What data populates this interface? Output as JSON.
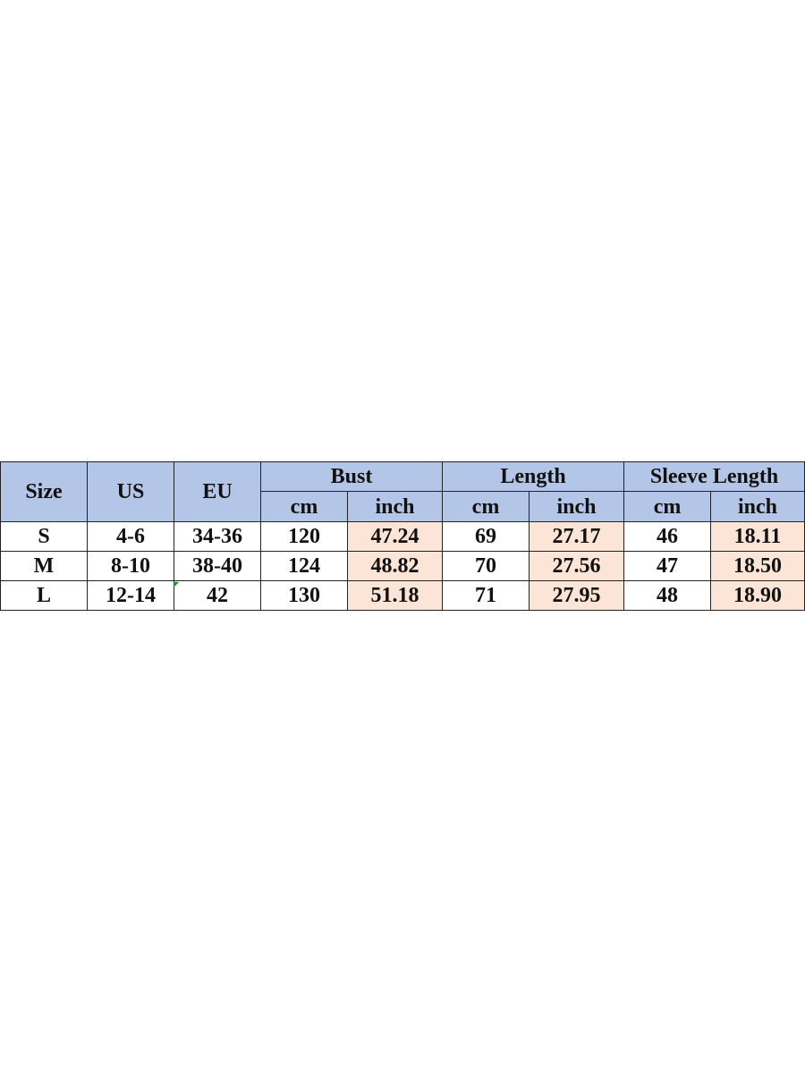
{
  "table": {
    "headers": {
      "size": "Size",
      "us": "US",
      "eu": "EU",
      "bust": "Bust",
      "length": "Length",
      "sleeve": "Sleeve Length",
      "cm": "cm",
      "inch": "inch"
    },
    "rows": [
      {
        "size": "S",
        "us": "4-6",
        "eu": "34-36",
        "bust_cm": "120",
        "bust_in": "47.24",
        "len_cm": "69",
        "len_in": "27.17",
        "sl_cm": "46",
        "sl_in": "18.11"
      },
      {
        "size": "M",
        "us": "8-10",
        "eu": "38-40",
        "bust_cm": "124",
        "bust_in": "48.82",
        "len_cm": "70",
        "len_in": "27.56",
        "sl_cm": "47",
        "sl_in": "18.50"
      },
      {
        "size": "L",
        "us": "12-14",
        "eu": "42",
        "bust_cm": "130",
        "bust_in": "51.18",
        "len_cm": "71",
        "len_in": "27.95",
        "sl_cm": "48",
        "sl_in": "18.90"
      }
    ]
  },
  "colors": {
    "header": "#b4c6e7",
    "inch_cells": "#fce4d6"
  }
}
